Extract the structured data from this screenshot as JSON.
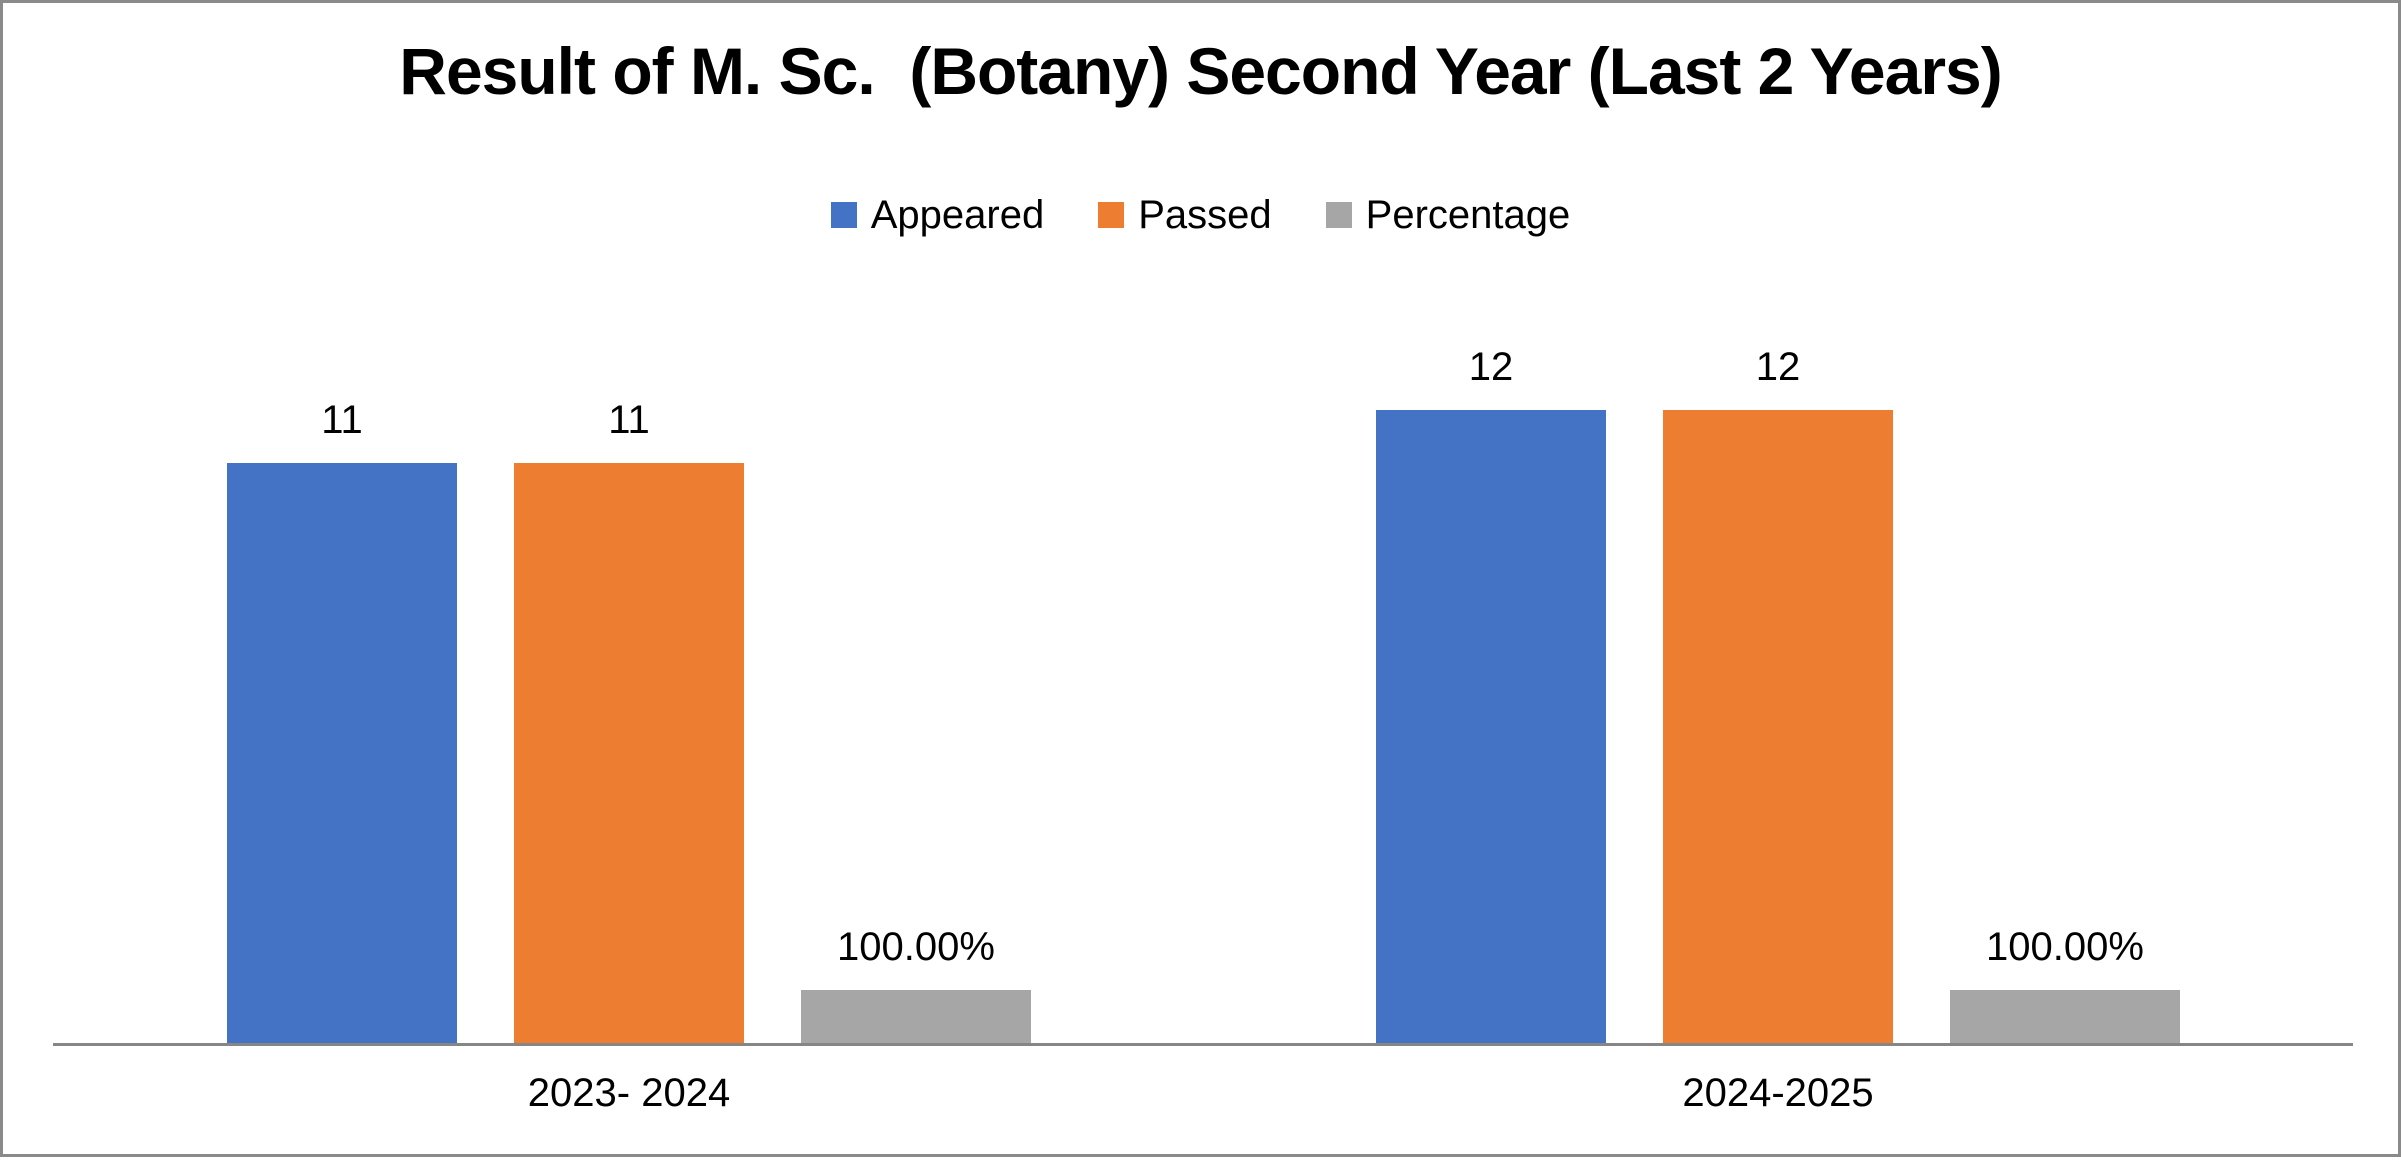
{
  "title": "Result of M. Sc.  (Botany) Second Year (Last 2 Years)",
  "frame": {
    "border_color": "#8a8a8a",
    "background_color": "#ffffff"
  },
  "legend": {
    "position": "top",
    "items": [
      {
        "label": "Appeared",
        "color": "#4472C4"
      },
      {
        "label": "Passed",
        "color": "#ED7D31"
      },
      {
        "label": "Percentage",
        "color": "#A6A6A6"
      }
    ]
  },
  "chart_data": {
    "type": "bar",
    "title": "Result of M. Sc.  (Botany) Second Year (Last 2 Years)",
    "categories": [
      "2023- 2024",
      "2024-2025"
    ],
    "series": [
      {
        "name": "Appeared",
        "color": "#4472C4",
        "values": [
          11,
          12
        ],
        "data_labels": [
          "11",
          "12"
        ]
      },
      {
        "name": "Passed",
        "color": "#ED7D31",
        "values": [
          11,
          12
        ],
        "data_labels": [
          "11",
          "12"
        ]
      },
      {
        "name": "Percentage",
        "color": "#A6A6A6",
        "values": [
          1.0,
          1.0
        ],
        "data_labels": [
          "100.00%",
          "100.00%"
        ]
      }
    ],
    "xlabel": "",
    "ylabel": "",
    "ylim": [
      0,
      12
    ],
    "y_axis_visible": false,
    "gridlines": false,
    "legend_position": "top",
    "axis_line_color": "#868686"
  }
}
